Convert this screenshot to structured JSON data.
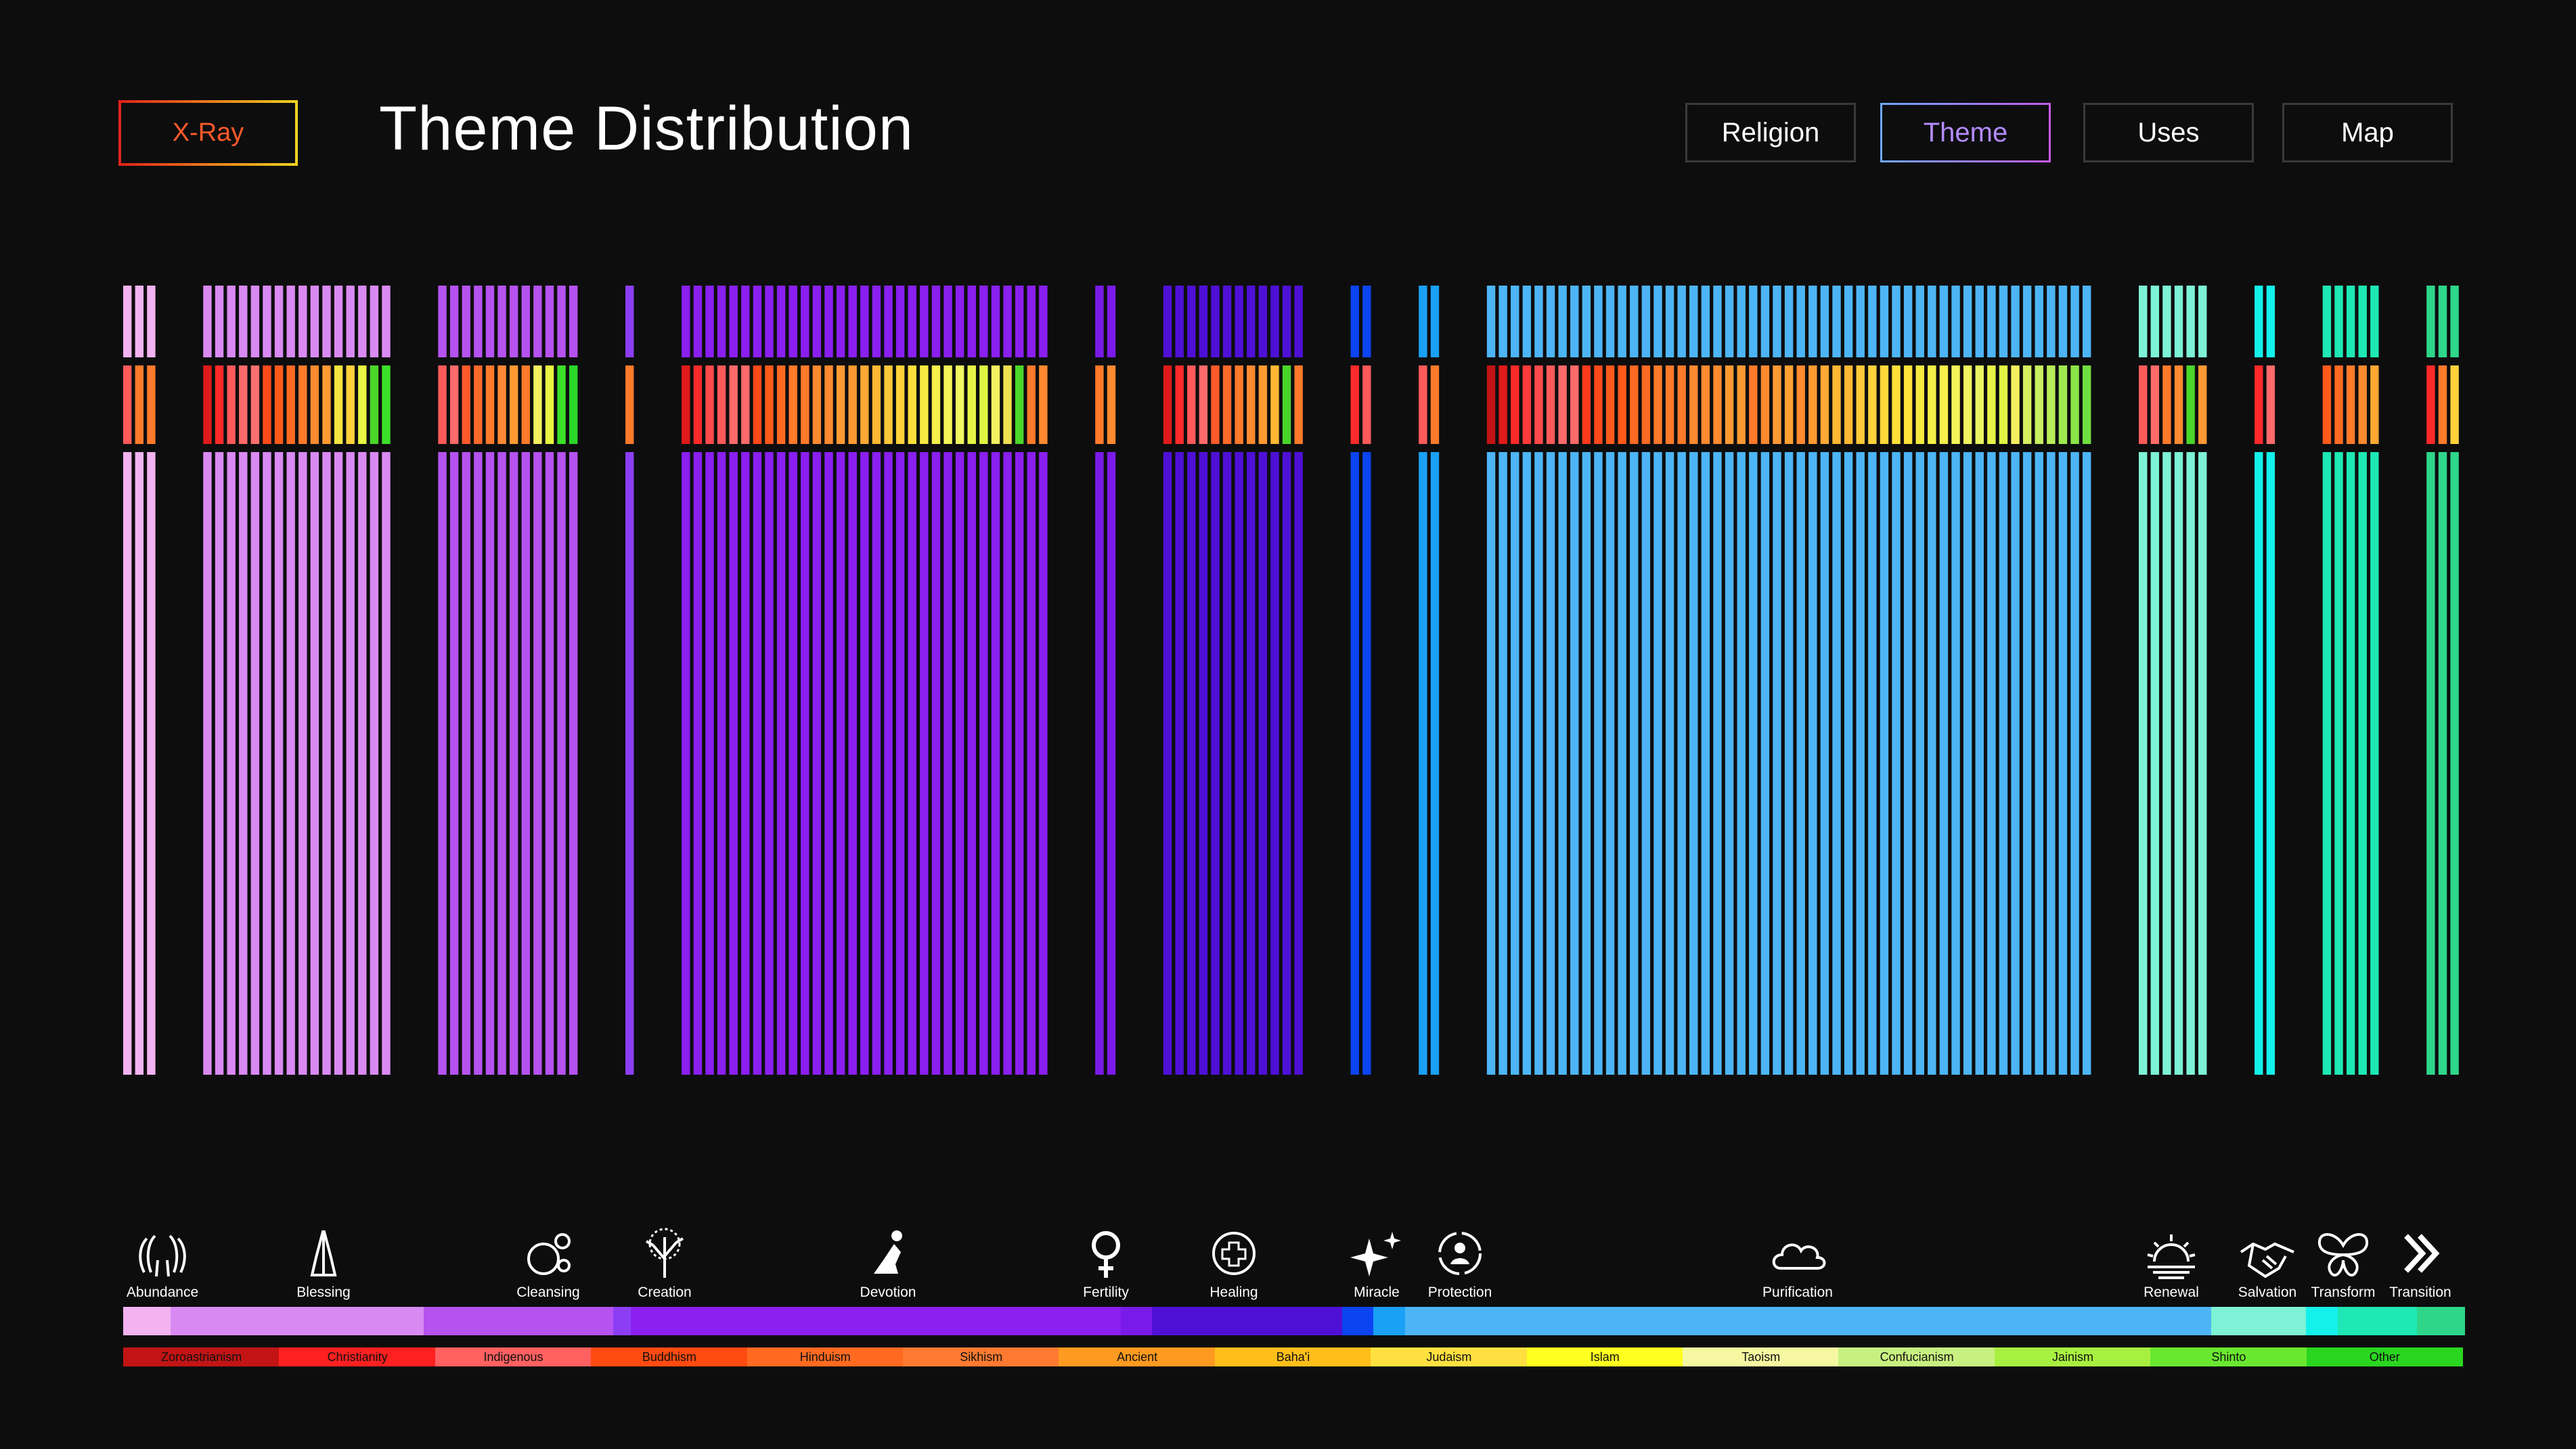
{
  "header": {
    "xray_label": "X-Ray",
    "title": "Theme Distribution",
    "nav": [
      {
        "label": "Religion",
        "active": false
      },
      {
        "label": "Theme",
        "active": true
      },
      {
        "label": "Uses",
        "active": false
      },
      {
        "label": "Map",
        "active": false
      }
    ]
  },
  "chart_data": {
    "type": "bar",
    "description_mode": "stripe distribution of items grouped by theme, each item colored by theme (top/bottom) and religion (middle)",
    "themes": [
      {
        "name": "Abundance",
        "icon": "open-hands-icon",
        "color": "#f2b3f0",
        "count": 3,
        "religions": [
          "#ff5a5a",
          "#ff7a2a",
          "#ff7a2a"
        ]
      },
      {
        "name": "Blessing",
        "icon": "praying-hands-icon",
        "color": "#d98af2",
        "count": 16,
        "religions": [
          "#e01a1a",
          "#ff2a2a",
          "#ff5a5a",
          "#ff6a6a",
          "#ff7070",
          "#ff4a1a",
          "#ff5a1a",
          "#ff6a22",
          "#ff7a2a",
          "#ff8a30",
          "#ff9a33",
          "#f5e640",
          "#ffd23a",
          "#e8f542",
          "#4bd62a",
          "#3ce02a"
        ]
      },
      {
        "name": "Cleansing",
        "icon": "bubbles-icon",
        "color": "#b552f0",
        "count": 12,
        "religions": [
          "#ff5a5a",
          "#ff6a6a",
          "#ff5a2a",
          "#ff6a2a",
          "#ff7a2a",
          "#ff8a33",
          "#ff9a33",
          "#ff7a2a",
          "#f5f060",
          "#e8f542",
          "#3ce02a",
          "#2ad62a"
        ]
      },
      {
        "name": "Creation",
        "icon": "tree-icon",
        "color": "#8d3ef5",
        "count": 1,
        "religions": [
          "#ff7a2a"
        ]
      },
      {
        "name": "Devotion",
        "icon": "kneeling-person-icon",
        "color": "#8a1ff0",
        "count": 31,
        "religions": [
          "#e01a1a",
          "#ff2a2a",
          "#ff4a4a",
          "#ff5a5a",
          "#ff6a6a",
          "#ff6a6a",
          "#ff4a1a",
          "#ff5a1a",
          "#ff6a22",
          "#ff7a2a",
          "#ff7a2a",
          "#ff8a30",
          "#ff8a30",
          "#ff9a33",
          "#ff9a33",
          "#ffa833",
          "#ffb833",
          "#ffc83a",
          "#ffd23a",
          "#ffe03a",
          "#f5ea40",
          "#f5f04a",
          "#f5f55a",
          "#f0f560",
          "#e8f548",
          "#e0f542",
          "#f5f060",
          "#f0e050",
          "#4bd62a",
          "#ff7a2a",
          "#ff8a30"
        ]
      },
      {
        "name": "Fertility",
        "icon": "female-symbol-icon",
        "color": "#7a1ae8",
        "count": 2,
        "religions": [
          "#ff7a2a",
          "#ff8a30"
        ]
      },
      {
        "name": "Healing",
        "icon": "medical-cross-icon",
        "color": "#4f10d6",
        "count": 12,
        "religions": [
          "#e01a1a",
          "#ff2a2a",
          "#ff5a5a",
          "#ff6a6a",
          "#ff5a2a",
          "#ff6a2a",
          "#ff7a2a",
          "#ff8a30",
          "#ff9a33",
          "#ffb833",
          "#4bd62a",
          "#ff7a2a"
        ]
      },
      {
        "name": "Miracle",
        "icon": "sparkles-icon",
        "color": "#0b44f0",
        "count": 2,
        "religions": [
          "#ff2a2a",
          "#ff5a5a"
        ]
      },
      {
        "name": "Protection",
        "icon": "protection-cycle-icon",
        "color": "#1aa0f5",
        "count": 2,
        "religions": [
          "#ff5a5a",
          "#ff7a2a"
        ]
      },
      {
        "name": "Purification",
        "icon": "cloud-icon",
        "color": "#4db5f5",
        "count": 51,
        "religions": [
          "#c21414",
          "#e01a1a",
          "#ff2a2a",
          "#ff3a3a",
          "#ff4a4a",
          "#ff5a5a",
          "#ff6a6a",
          "#ff6a6a",
          "#ff3a1a",
          "#ff4a1a",
          "#ff5a1a",
          "#ff5a1a",
          "#ff6a22",
          "#ff6a22",
          "#ff7a2a",
          "#ff7a2a",
          "#ff7a2a",
          "#ff8a30",
          "#ff8a30",
          "#ff8a30",
          "#ff9a33",
          "#ff9a33",
          "#ff7a2a",
          "#ff8a30",
          "#ff9a33",
          "#ffa033",
          "#ff8a30",
          "#ff9a33",
          "#ffa833",
          "#ffb833",
          "#ffb833",
          "#ffc83a",
          "#ffd23a",
          "#ffd83a",
          "#ffe03a",
          "#ffe23a",
          "#f5ea40",
          "#f5ef48",
          "#f5f04a",
          "#f5f55a",
          "#f0f560",
          "#e8f560",
          "#e8f548",
          "#e0f542",
          "#f5f060",
          "#d8f060",
          "#c8f060",
          "#b8ec58",
          "#a0e850",
          "#8ae448",
          "#70de40"
        ]
      },
      {
        "name": "Renewal",
        "icon": "sunrise-icon",
        "color": "#7df2d6",
        "count": 6,
        "religions": [
          "#ff5a5a",
          "#ff6a6a",
          "#ff7a2a",
          "#ff8a30",
          "#4bd62a",
          "#ff9a33"
        ]
      },
      {
        "name": "Salvation",
        "icon": "handshake-icon",
        "color": "#14f0ea",
        "count": 2,
        "religions": [
          "#ff2a2a",
          "#ff6a6a"
        ]
      },
      {
        "name": "Transform",
        "icon": "butterfly-icon",
        "color": "#1ee8b4",
        "count": 5,
        "religions": [
          "#ff5a1a",
          "#ff6a22",
          "#ff7a2a",
          "#ff8a30",
          "#ffa833"
        ]
      },
      {
        "name": "Transition",
        "icon": "double-chevron-icon",
        "color": "#2ed68a",
        "count": 3,
        "religions": [
          "#ff2a2a",
          "#ff7a2a",
          "#ffd23a"
        ]
      }
    ],
    "theme_bar_colors": [
      "#f2b3f0",
      "#d98af2",
      "#b552f0",
      "#8d3ef5",
      "#8a1ff0",
      "#7a1ae8",
      "#4f10d6",
      "#0b44f0",
      "#1aa0f5",
      "#4db5f5",
      "#7df2d6",
      "#14f0ea",
      "#1ee8b4",
      "#2ed68a"
    ],
    "religion_legend": [
      {
        "name": "Zoroastrianism",
        "color": "#c21414"
      },
      {
        "name": "Christianity",
        "color": "#ff2020"
      },
      {
        "name": "Indigenous",
        "color": "#ff6060"
      },
      {
        "name": "Buddhism",
        "color": "#ff4a10"
      },
      {
        "name": "Hinduism",
        "color": "#ff6a20"
      },
      {
        "name": "Sikhism",
        "color": "#ff7a30"
      },
      {
        "name": "Ancient",
        "color": "#ff9a20"
      },
      {
        "name": "Baha'i",
        "color": "#ffbf1a"
      },
      {
        "name": "Judaism",
        "color": "#ffe040"
      },
      {
        "name": "Islam",
        "color": "#ffff20"
      },
      {
        "name": "Taoism",
        "color": "#f5f8a0"
      },
      {
        "name": "Confucianism",
        "color": "#c8f080"
      },
      {
        "name": "Jainism",
        "color": "#a8f040"
      },
      {
        "name": "Shinto",
        "color": "#6ae830"
      },
      {
        "name": "Other",
        "color": "#2ad620"
      }
    ]
  }
}
